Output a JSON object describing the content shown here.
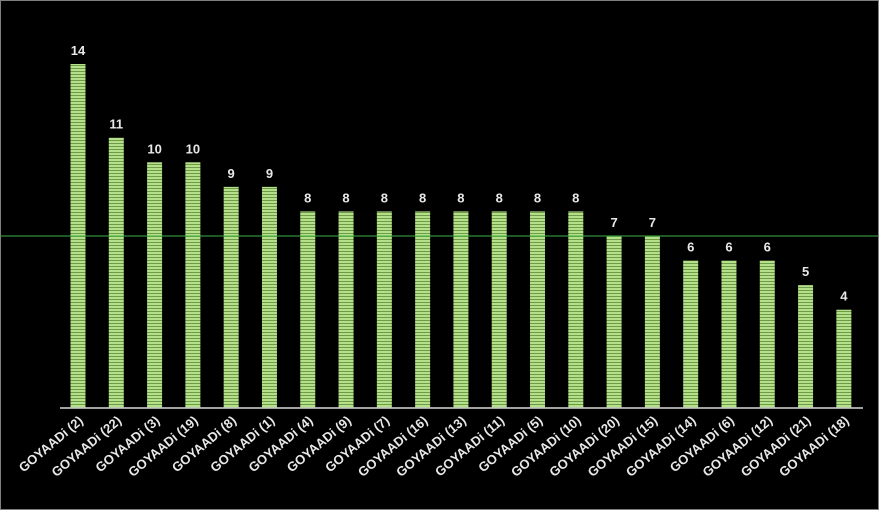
{
  "chart_data": {
    "type": "bar",
    "categories": [
      "GOYAADi (2)",
      "GOYAADi (22)",
      "GOYAADi (3)",
      "GOYAADi (19)",
      "GOYAADi (8)",
      "GOYAADi (1)",
      "GOYAADi (4)",
      "GOYAADi (9)",
      "GOYAADi (7)",
      "GOYAADi (16)",
      "GOYAADi (13)",
      "GOYAADi (11)",
      "GOYAADi (5)",
      "GOYAADi (10)",
      "GOYAADi (20)",
      "GOYAADi (15)",
      "GOYAADi (14)",
      "GOYAADi (6)",
      "GOYAADi (12)",
      "GOYAADi (21)",
      "GOYAADi (18)"
    ],
    "values": [
      14,
      11,
      10,
      10,
      9,
      9,
      8,
      8,
      8,
      8,
      8,
      8,
      8,
      8,
      7,
      7,
      6,
      6,
      6,
      5,
      4
    ],
    "color": "#b5e08a",
    "reference_line": 7,
    "reference_color": "#3cb043",
    "ylim": [
      0,
      14
    ]
  }
}
